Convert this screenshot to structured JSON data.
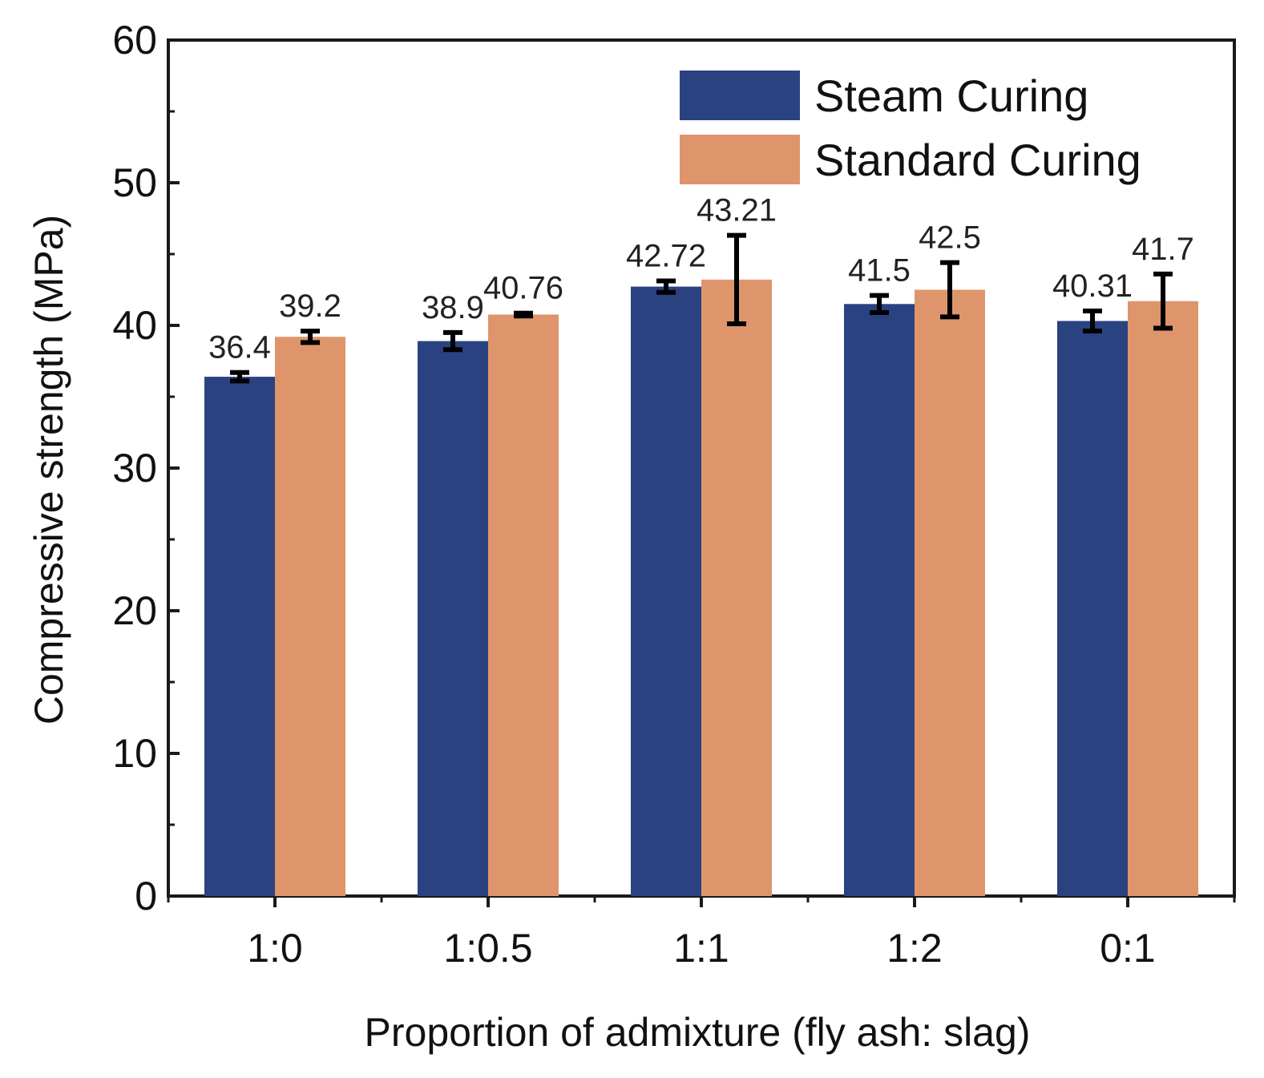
{
  "chart_data": {
    "type": "bar",
    "title": "",
    "xlabel": "Proportion of admixture (fly ash: slag)",
    "ylabel": "Compressive strength (MPa)",
    "ylim": [
      0,
      60
    ],
    "yticks": [
      "0",
      "10",
      "20",
      "30",
      "40",
      "50",
      "60"
    ],
    "categories": [
      "1:0",
      "1:0.5",
      "1:1",
      "1:2",
      "0:1"
    ],
    "legend_position": "top-right",
    "series": [
      {
        "name": "Steam Curing",
        "color": "#2b4281",
        "values": [
          36.4,
          38.9,
          42.72,
          41.5,
          40.31
        ],
        "labels": [
          "36.4",
          "38.9",
          "42.72",
          "41.5",
          "40.31"
        ],
        "errors": [
          0.3,
          0.6,
          0.4,
          0.6,
          0.7
        ]
      },
      {
        "name": "Standard Curing",
        "color": "#df956b",
        "values": [
          39.2,
          40.76,
          43.21,
          42.5,
          41.7
        ],
        "labels": [
          "39.2",
          "40.76",
          "43.21",
          "42.5",
          "41.7"
        ],
        "errors": [
          0.4,
          0.1,
          3.1,
          1.9,
          1.9
        ]
      }
    ]
  }
}
